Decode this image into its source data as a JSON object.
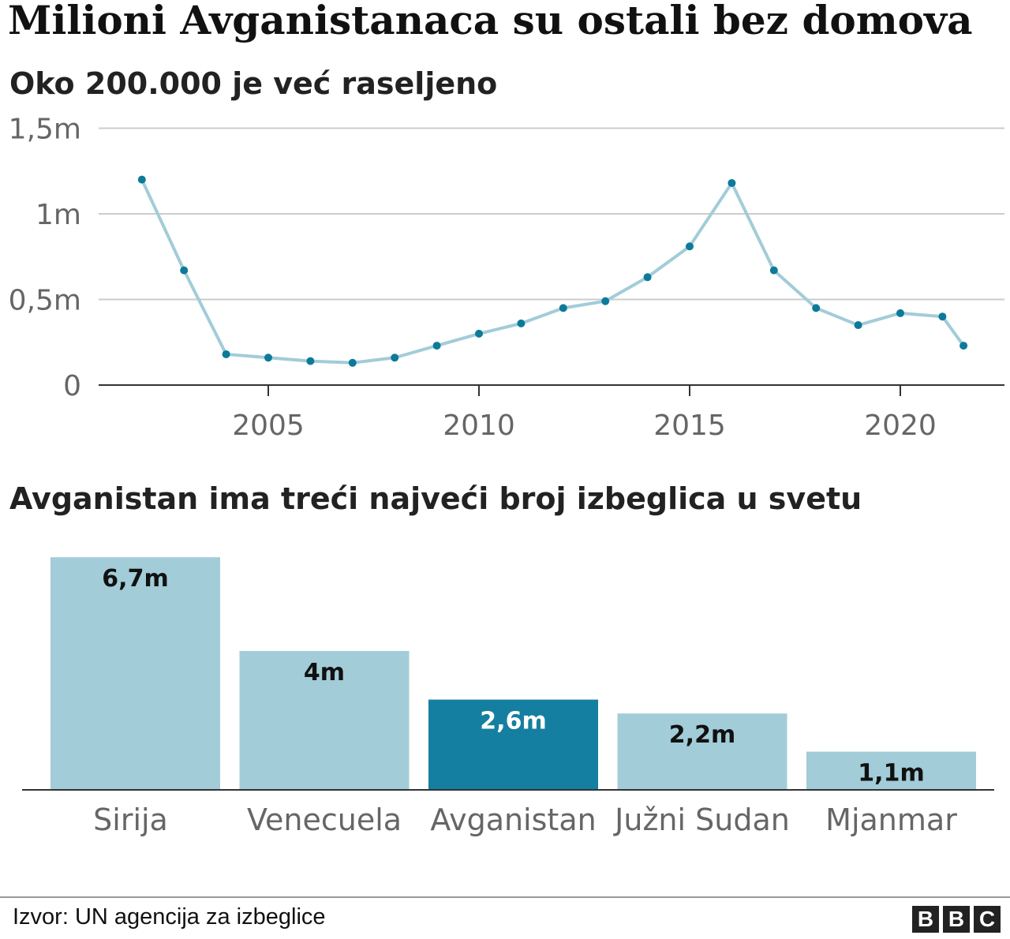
{
  "title": "Milioni Avganistanaca su ostali bez domova",
  "source": "Izvor: UN agencija za izbeglice",
  "logo": "BBC",
  "colors": {
    "line": "#a2ccd8",
    "dot": "#0d7a9a",
    "bar": "#a2ccd8",
    "highlight": "#147fa0",
    "grid": "#cccccc",
    "axis": "#333333",
    "tick_text": "#666666"
  },
  "chart_data": [
    {
      "type": "line",
      "title": "Oko 200.000 je već raseljeno",
      "ylim": [
        0,
        1.5
      ],
      "yticks": [
        {
          "v": 0,
          "label": "0"
        },
        {
          "v": 0.5,
          "label": "0,5m"
        },
        {
          "v": 1,
          "label": "1m"
        },
        {
          "v": 1.5,
          "label": "1,5m"
        }
      ],
      "xticks": [
        {
          "v": 2005,
          "label": "2005"
        },
        {
          "v": 2010,
          "label": "2010"
        },
        {
          "v": 2015,
          "label": "2015"
        },
        {
          "v": 2020,
          "label": "2020"
        }
      ],
      "grid": true,
      "x": [
        2002,
        2003,
        2004,
        2005,
        2006,
        2007,
        2008,
        2009,
        2010,
        2011,
        2012,
        2013,
        2014,
        2015,
        2016,
        2017,
        2018,
        2019,
        2020,
        2021,
        2021.5
      ],
      "y": [
        1.2,
        0.67,
        0.18,
        0.16,
        0.14,
        0.13,
        0.16,
        0.23,
        0.3,
        0.36,
        0.45,
        0.49,
        0.63,
        0.81,
        1.18,
        0.67,
        0.45,
        0.35,
        0.42,
        0.4,
        0.23
      ]
    },
    {
      "type": "bar",
      "title": "Avganistan ima treći najveći broj izbeglica u svetu",
      "categories": [
        "Sirija",
        "Venecuela",
        "Avganistan",
        "Južni Sudan",
        "Mjanmar"
      ],
      "values": [
        6.7,
        4.0,
        2.6,
        2.2,
        1.1
      ],
      "labels": [
        "6,7m",
        "4m",
        "2,6m",
        "2,2m",
        "1,1m"
      ],
      "highlight": "Avganistan"
    }
  ]
}
